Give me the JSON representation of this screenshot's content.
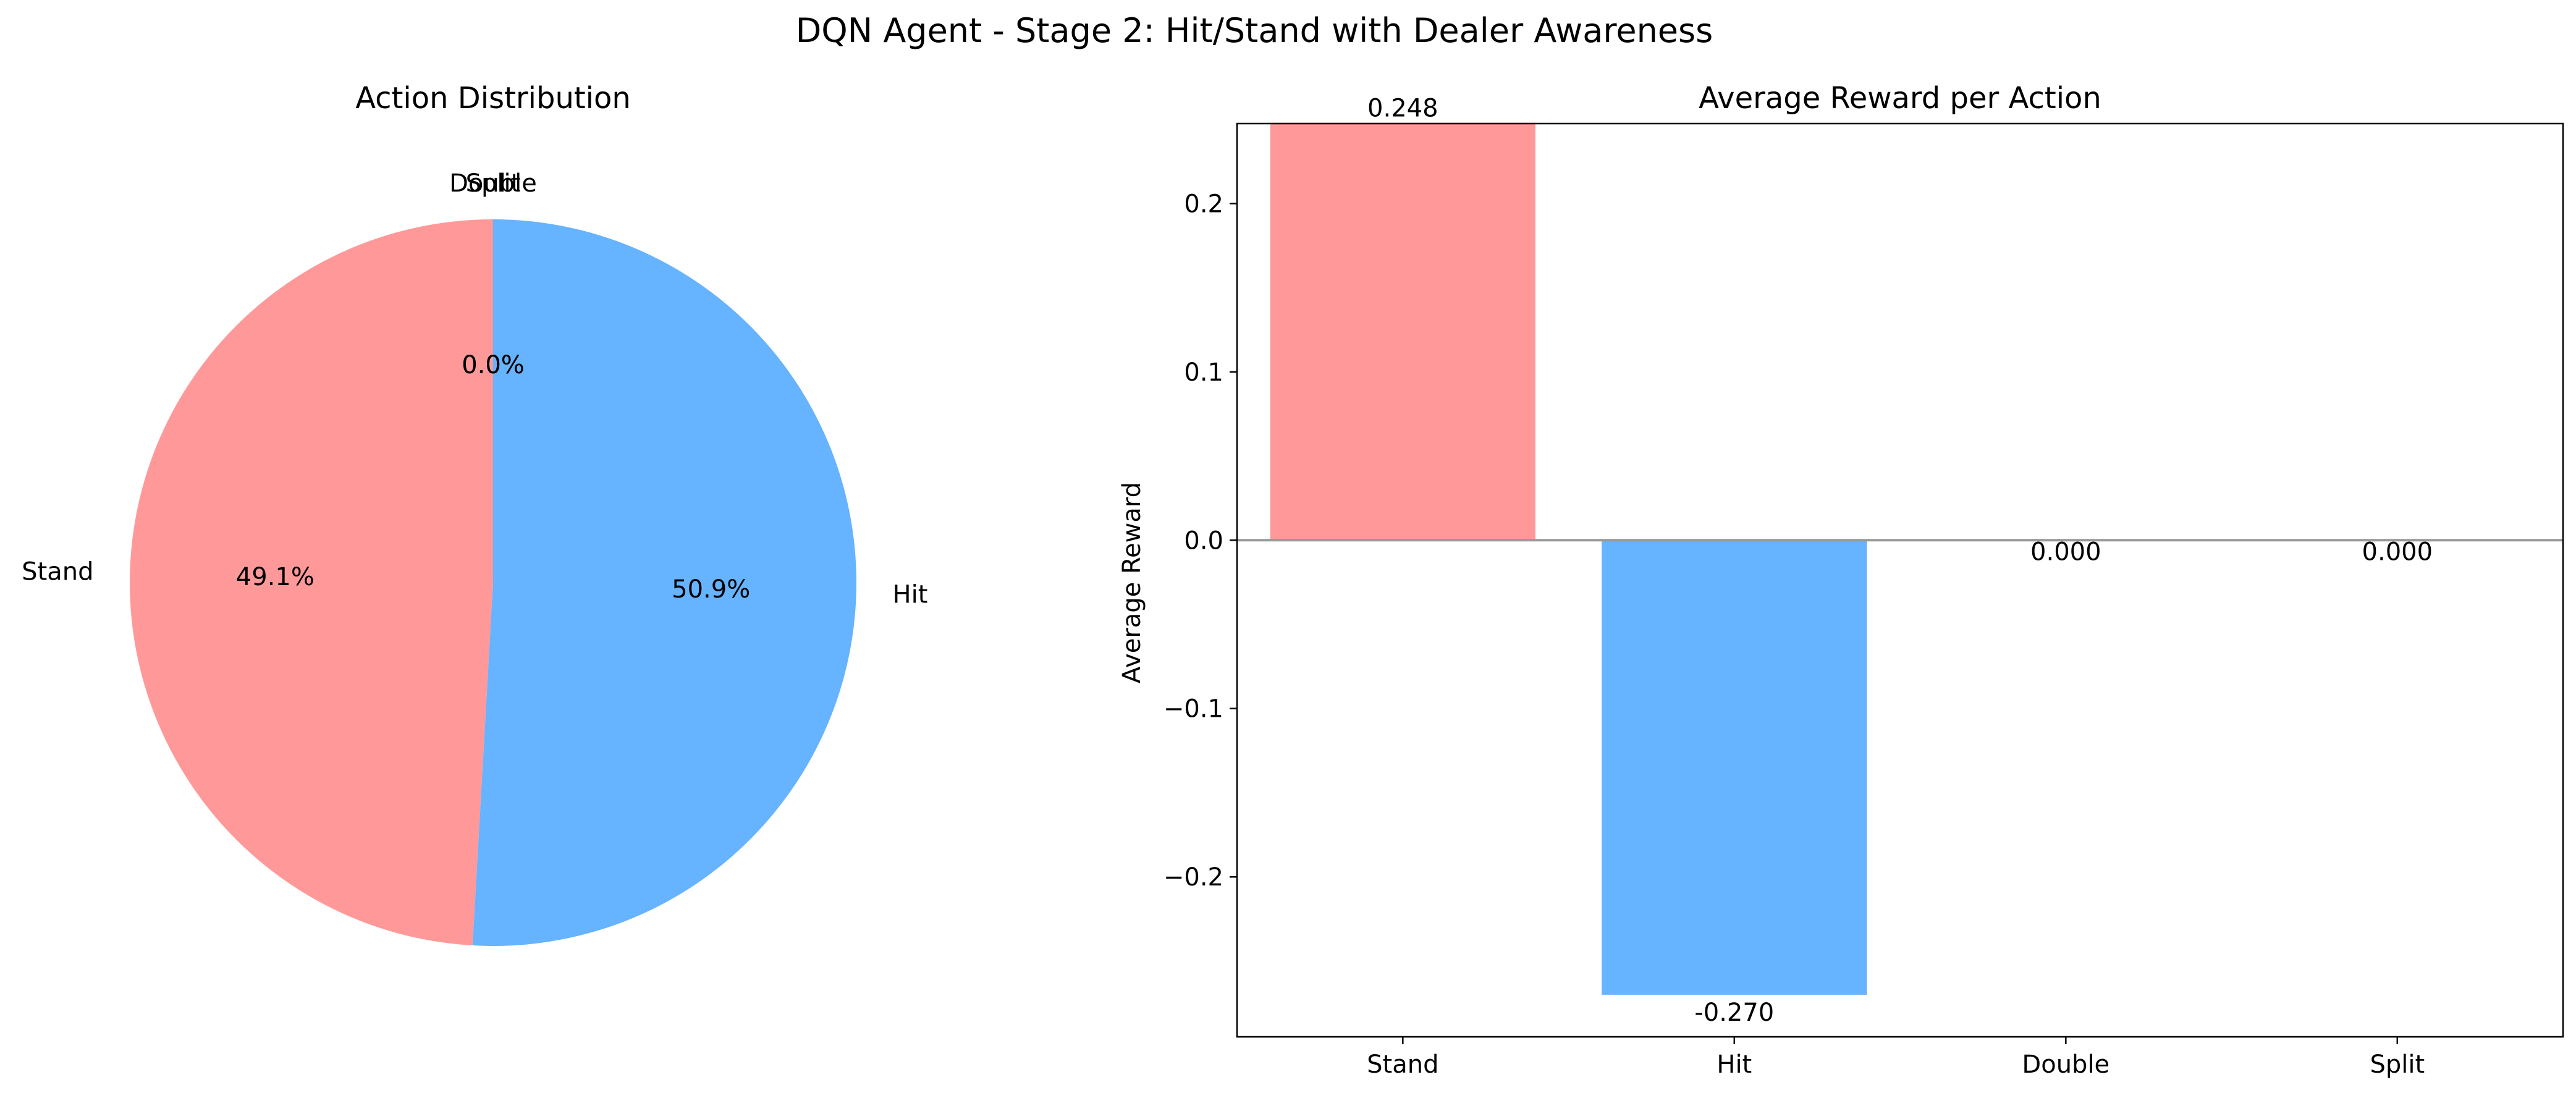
{
  "figure_title": "DQN Agent - Stage 2: Hit/Stand with Dealer Awareness",
  "colors": {
    "stand": "#ff9999",
    "hit": "#66b3ff",
    "double": "#99ff99",
    "split": "#ffcc99",
    "zero_line": "#999999",
    "axis": "#000000"
  },
  "chart_data": [
    {
      "type": "pie",
      "title": "Action Distribution",
      "slices": [
        {
          "label": "Stand",
          "value": 49.1,
          "pct_label": "49.1%"
        },
        {
          "label": "Hit",
          "value": 50.9,
          "pct_label": "50.9%"
        },
        {
          "label": "Double",
          "value": 0.0,
          "pct_label": "0.0%"
        },
        {
          "label": "Split",
          "value": 0.0,
          "pct_label": "0.0%"
        }
      ],
      "start_angle_deg": 90,
      "direction": "counterclockwise"
    },
    {
      "type": "bar",
      "title": "Average Reward per Action",
      "categories": [
        "Stand",
        "Hit",
        "Double",
        "Split"
      ],
      "values": [
        0.248,
        -0.27,
        0.0,
        0.0
      ],
      "value_labels": [
        "0.248",
        "-0.270",
        "0.000",
        "0.000"
      ],
      "xlabel": "",
      "ylabel": "Average Reward",
      "ylim": [
        -0.295,
        0.2475
      ],
      "yticks": [
        -0.2,
        -0.1,
        0.0,
        0.1,
        0.2
      ],
      "ytick_labels": [
        "−0.2",
        "−0.1",
        "0.0",
        "0.1",
        "0.2"
      ],
      "grid": false,
      "zero_line": true
    }
  ]
}
